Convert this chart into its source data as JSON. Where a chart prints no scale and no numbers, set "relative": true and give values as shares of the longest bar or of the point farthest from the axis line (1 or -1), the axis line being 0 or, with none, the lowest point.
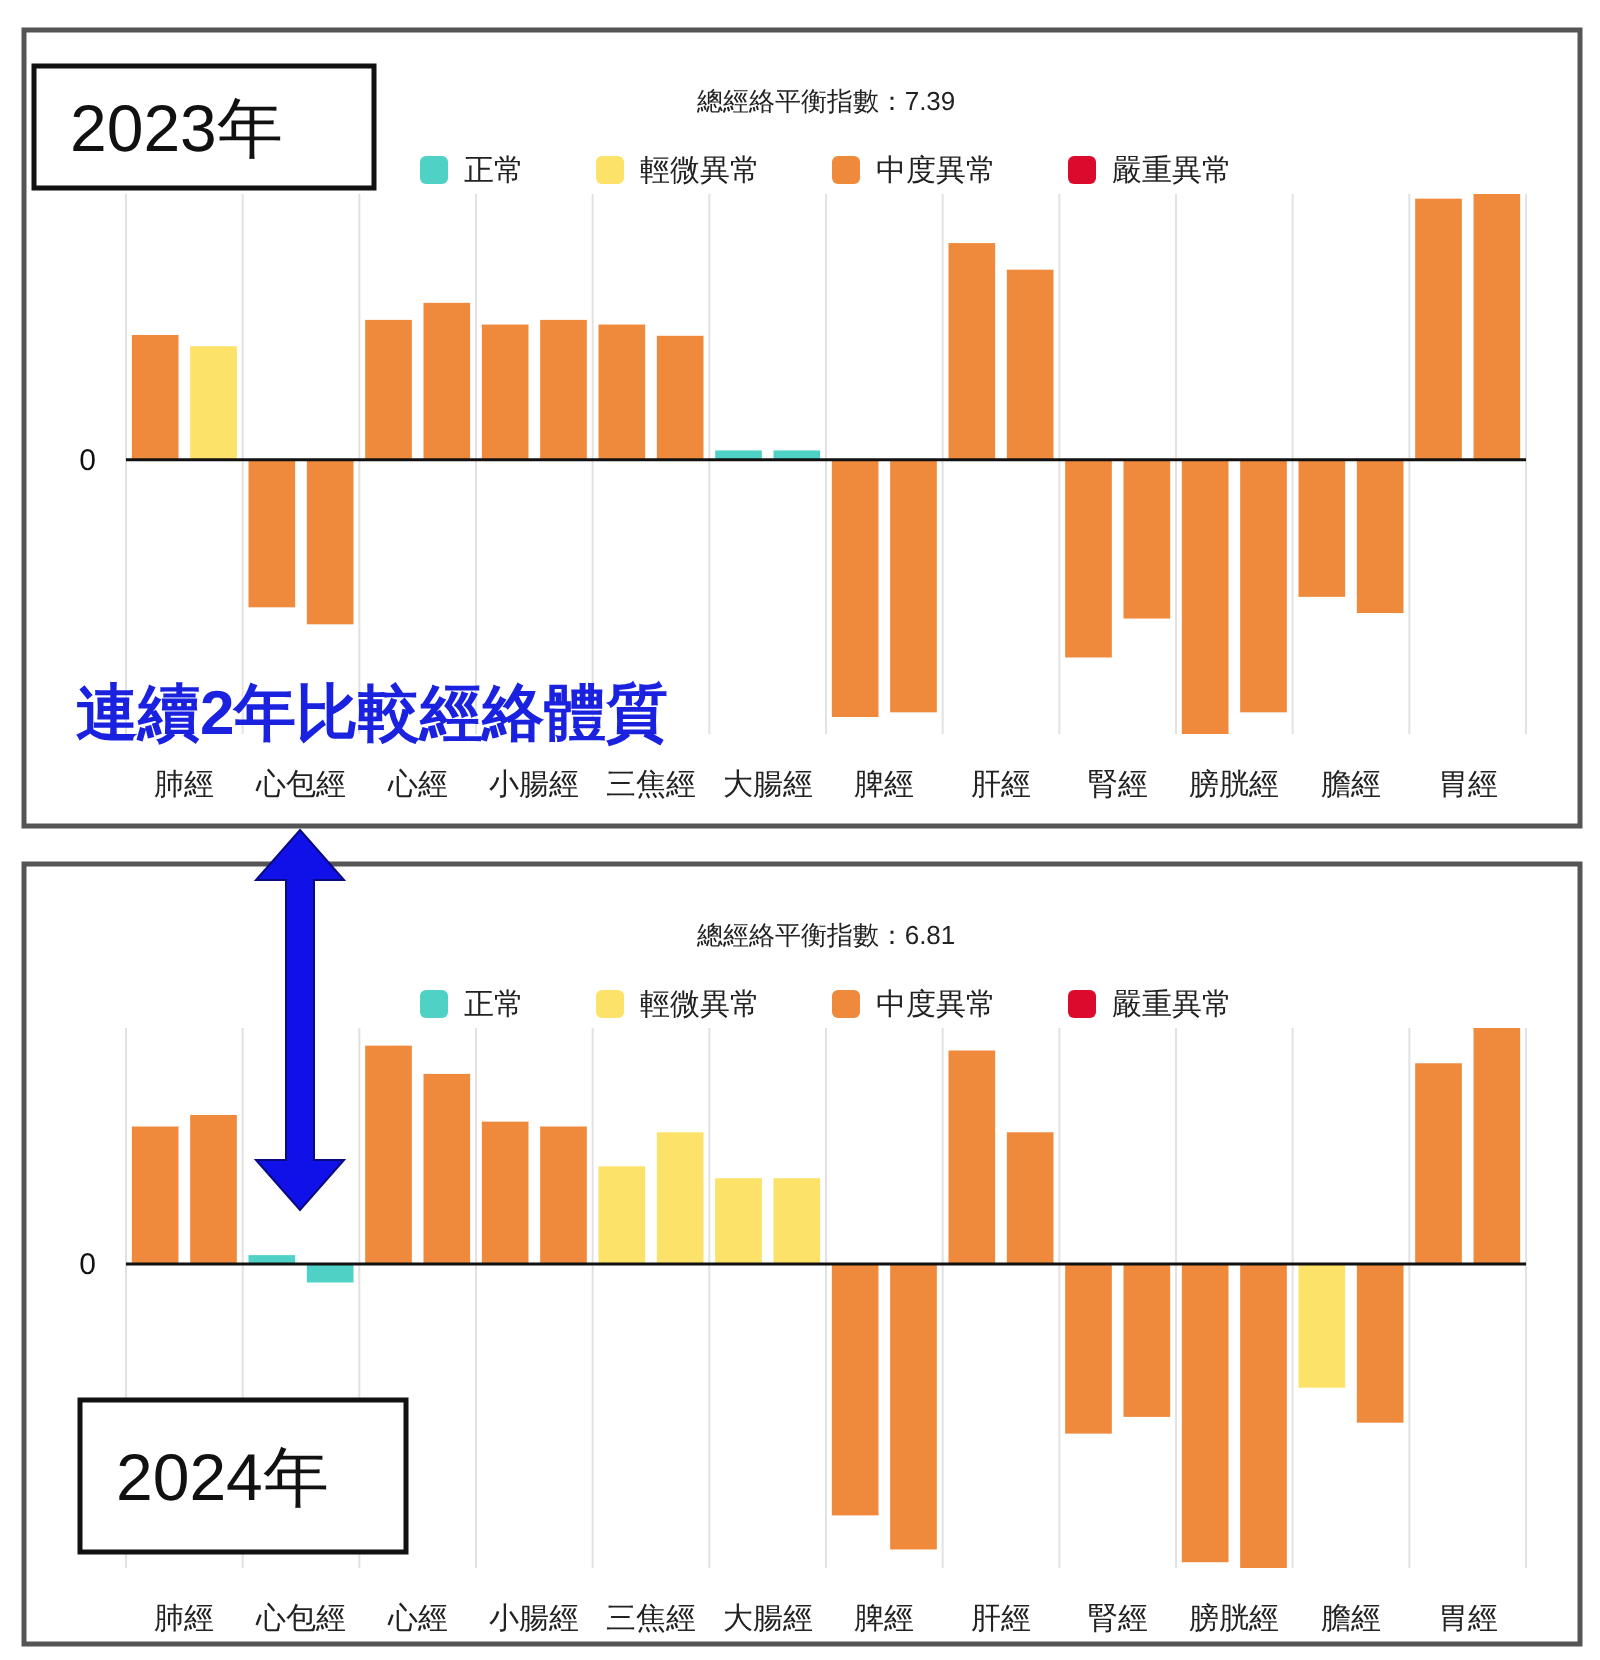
{
  "chart_data": [
    {
      "type": "bar",
      "title": "總經絡平衡指數：7.39",
      "relative": true,
      "grid": "x",
      "legend": "top",
      "ref_lines": [
        {
          "axis": "y",
          "value": 0,
          "label": "0"
        }
      ],
      "categories": [
        "肺經",
        "心包經",
        "心經",
        "小腸經",
        "三焦經",
        "大腸經",
        "脾經",
        "肝經",
        "腎經",
        "膀胱經",
        "膽經",
        "胃經"
      ],
      "series": [
        {
          "values": [
            0.455,
            -0.538,
            0.51,
            0.493,
            0.493,
            0.034,
            -0.938,
            0.79,
            -0.721,
            -1,
            -0.5,
            0.952
          ],
          "colors": [
            "#ef8a3c",
            "#ef8a3c",
            "#ef8a3c",
            "#ef8a3c",
            "#ef8a3c",
            "#4fd1c5",
            "#ef8a3c",
            "#ef8a3c",
            "#ef8a3c",
            "#ef8a3c",
            "#ef8a3c",
            "#ef8a3c"
          ]
        },
        {
          "values": [
            0.414,
            -0.6,
            0.572,
            0.51,
            0.452,
            0.034,
            -0.921,
            0.693,
            -0.579,
            -0.921,
            -0.559,
            0.969
          ],
          "colors": [
            "#fde26a",
            "#ef8a3c",
            "#ef8a3c",
            "#ef8a3c",
            "#ef8a3c",
            "#4fd1c5",
            "#ef8a3c",
            "#ef8a3c",
            "#ef8a3c",
            "#ef8a3c",
            "#ef8a3c",
            "#ef8a3c"
          ]
        },
        {
          "name": "正常",
          "color": "#4fd1c5",
          "values": [
            null,
            null,
            null,
            null,
            null,
            null,
            null,
            null,
            null,
            null,
            null,
            null
          ]
        },
        {
          "name": "輕微異常",
          "color": "#fde26a",
          "values": [
            null,
            null,
            null,
            null,
            null,
            null,
            null,
            null,
            null,
            null,
            null,
            null
          ]
        },
        {
          "name": "中度異常",
          "color": "#ef8a3c",
          "values": [
            null,
            null,
            null,
            null,
            null,
            null,
            null,
            null,
            null,
            null,
            null,
            null
          ]
        },
        {
          "name": "嚴重異常",
          "color": "#dc0a2d",
          "values": [
            null,
            null,
            null,
            null,
            null,
            null,
            null,
            null,
            null,
            null,
            null,
            null
          ]
        }
      ],
      "annotations": [
        "2023年",
        "連續2年比較經絡體質"
      ]
    },
    {
      "type": "bar",
      "title": "總經絡平衡指數：6.81",
      "relative": true,
      "grid": "x",
      "legend": "top",
      "ref_lines": [
        {
          "axis": "y",
          "value": 0,
          "label": "0"
        }
      ],
      "categories": [
        "肺經",
        "心包經",
        "心經",
        "小腸經",
        "三焦經",
        "大腸經",
        "脾經",
        "肝經",
        "腎經",
        "膀胱經",
        "膽經",
        "胃經"
      ],
      "series": [
        {
          "values": [
            0.452,
            0.029,
            0.718,
            0.468,
            0.321,
            0.282,
            -0.827,
            0.702,
            -0.558,
            -0.981,
            -0.407,
            0.66
          ],
          "colors": [
            "#ef8a3c",
            "#4fd1c5",
            "#ef8a3c",
            "#ef8a3c",
            "#fde26a",
            "#fde26a",
            "#ef8a3c",
            "#ef8a3c",
            "#ef8a3c",
            "#ef8a3c",
            "#fde26a",
            "#ef8a3c"
          ]
        },
        {
          "values": [
            0.49,
            -0.061,
            0.625,
            0.452,
            0.433,
            0.282,
            -0.939,
            0.433,
            -0.503,
            -1,
            -0.522,
            0.776
          ],
          "colors": [
            "#ef8a3c",
            "#4fd1c5",
            "#ef8a3c",
            "#ef8a3c",
            "#fde26a",
            "#fde26a",
            "#ef8a3c",
            "#ef8a3c",
            "#ef8a3c",
            "#ef8a3c",
            "#ef8a3c",
            "#ef8a3c"
          ]
        },
        {
          "name": "正常",
          "color": "#4fd1c5",
          "values": [
            null,
            null,
            null,
            null,
            null,
            null,
            null,
            null,
            null,
            null,
            null,
            null
          ]
        },
        {
          "name": "輕微異常",
          "color": "#fde26a",
          "values": [
            null,
            null,
            null,
            null,
            null,
            null,
            null,
            null,
            null,
            null,
            null,
            null
          ]
        },
        {
          "name": "中度異常",
          "color": "#ef8a3c",
          "values": [
            null,
            null,
            null,
            null,
            null,
            null,
            null,
            null,
            null,
            null,
            null,
            null
          ]
        },
        {
          "name": "嚴重異常",
          "color": "#dc0a2d",
          "values": [
            null,
            null,
            null,
            null,
            null,
            null,
            null,
            null,
            null,
            null,
            null,
            null
          ]
        }
      ],
      "annotations": [
        "2024年"
      ]
    }
  ]
}
